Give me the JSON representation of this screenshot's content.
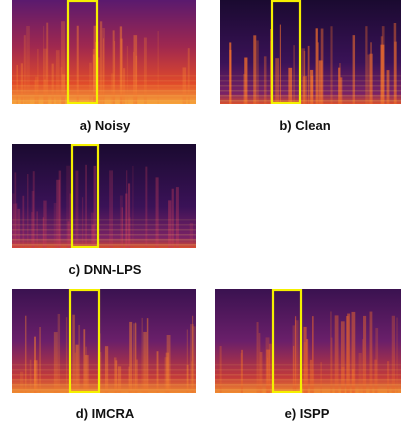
{
  "panels": [
    {
      "label": "a) Noisy"
    },
    {
      "label": "b) Clean"
    },
    {
      "label": "c) DNN-LPS"
    },
    {
      "label": "d) IMCRA"
    },
    {
      "label": "e) ISPP"
    }
  ]
}
